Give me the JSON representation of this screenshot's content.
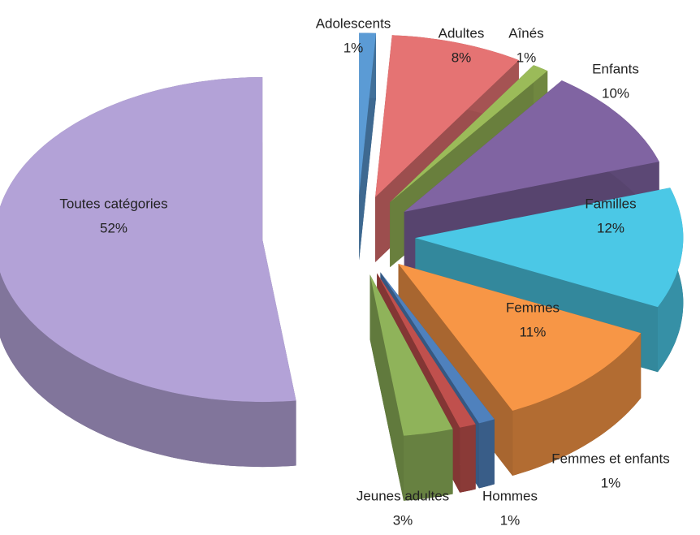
{
  "chart_data": {
    "type": "pie",
    "categories": [
      "Adolescents",
      "Adultes",
      "Aînés",
      "Enfants",
      "Familles",
      "Femmes",
      "Femmes et enfants",
      "Hommes",
      "Jeunes adultes",
      "Toutes catégories"
    ],
    "values": [
      1,
      8,
      1,
      10,
      12,
      11,
      1,
      1,
      3,
      52
    ],
    "value_labels": [
      "1%",
      "8%",
      "1%",
      "10%",
      "12%",
      "11%",
      "1%",
      "1%",
      "3%",
      "52%"
    ],
    "colors": [
      "#5b9bd5",
      "#e57373",
      "#9bbb59",
      "#8064a2",
      "#4bc8e6",
      "#f79646",
      "#4f81bd",
      "#c0504d",
      "#8fb35a",
      "#b3a2d7"
    ]
  }
}
